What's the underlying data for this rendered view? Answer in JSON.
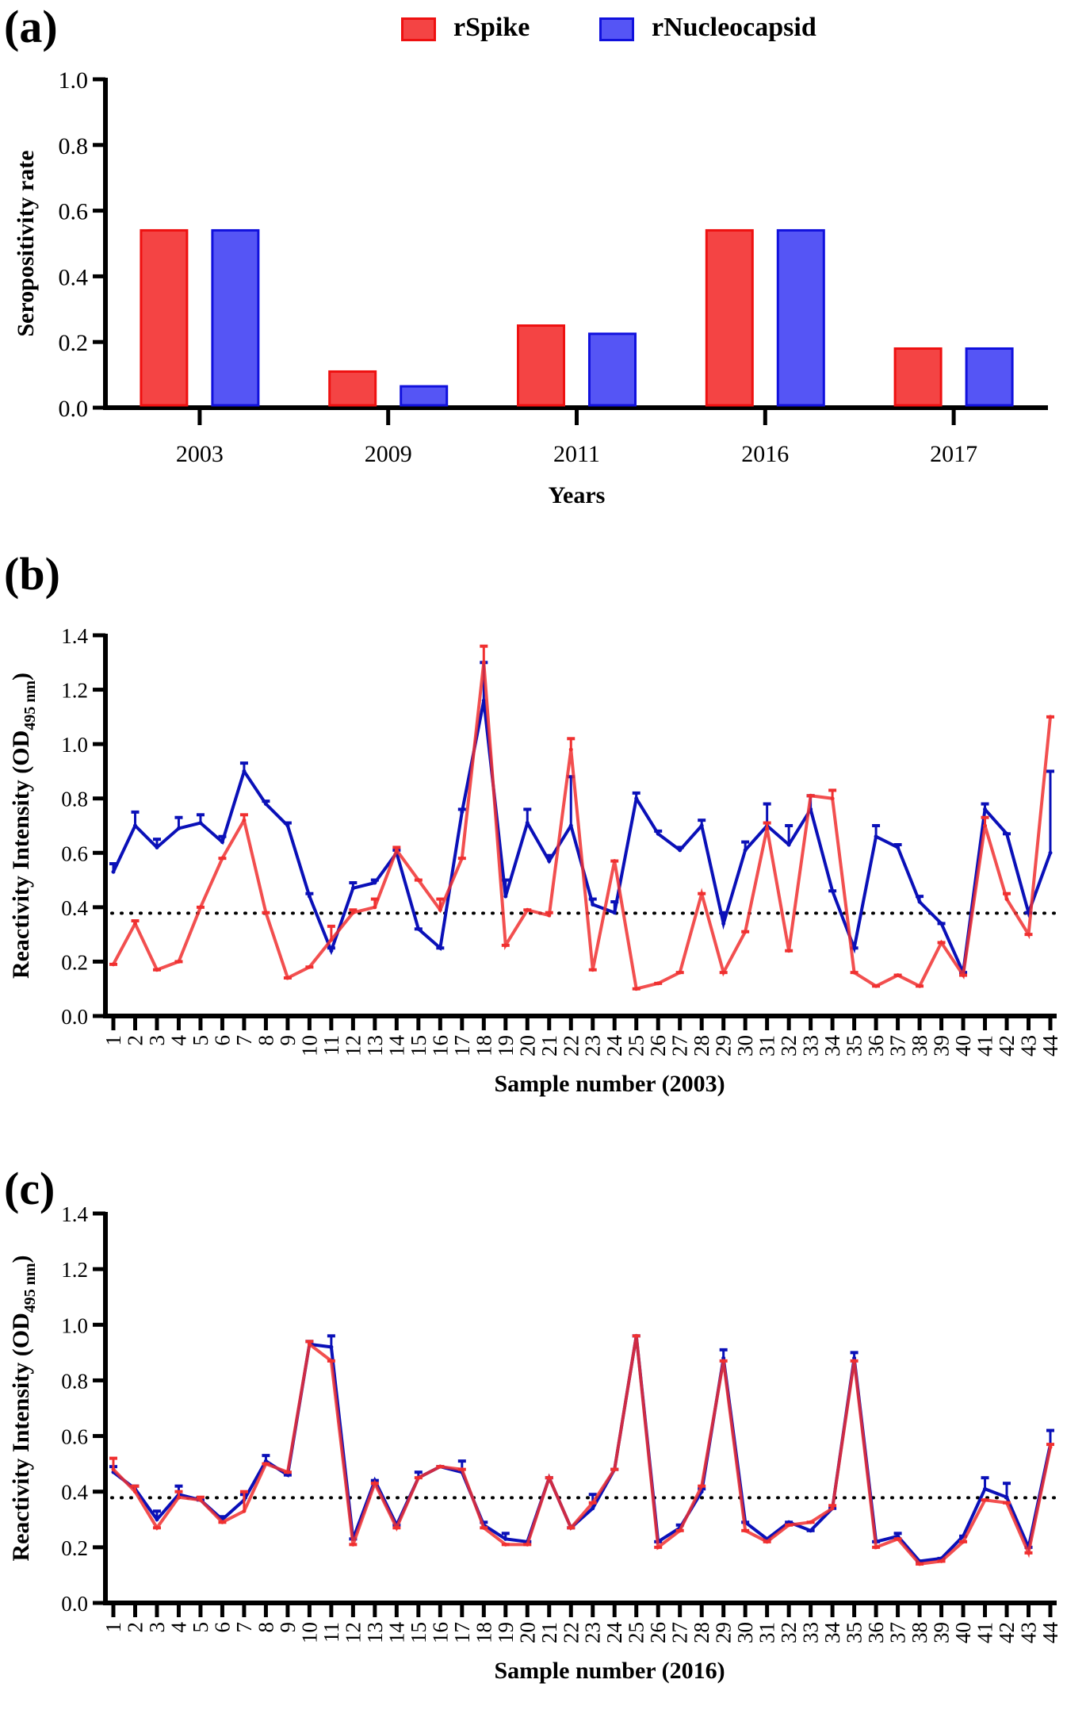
{
  "figure": {
    "panel_labels": [
      "(a)",
      "(b)",
      "(c)"
    ],
    "legend": [
      {
        "name": "rSpike",
        "color": "#f44444",
        "stroke": "#ee1111"
      },
      {
        "name": "rNucleocapsid",
        "color": "#5555f5",
        "stroke": "#1111dd"
      }
    ],
    "line_colors": {
      "rSpike": "#f03030",
      "rNucleocapsid": "#0a10b8"
    }
  },
  "chart_data": [
    {
      "id": "a",
      "type": "bar",
      "title": "",
      "xlabel": "Years",
      "ylabel": "Seropositivity rate",
      "categories": [
        "2003",
        "2009",
        "2011",
        "2016",
        "2017"
      ],
      "series": [
        {
          "name": "rSpike",
          "values": [
            0.54,
            0.11,
            0.25,
            0.54,
            0.18
          ]
        },
        {
          "name": "rNucleocapsid",
          "values": [
            0.54,
            0.065,
            0.225,
            0.54,
            0.18
          ]
        }
      ],
      "ylim": [
        0,
        1.0
      ],
      "yticks": [
        "0.0",
        "0.2",
        "0.4",
        "0.6",
        "0.8",
        "1.0"
      ],
      "legend_position": "top"
    },
    {
      "id": "b",
      "type": "line",
      "xlabel": "Sample number (2003)",
      "ylabel": "Reactivity Intensity (OD",
      "ylabel_sub": "495 nm",
      "ylabel_end": ")",
      "x": [
        1,
        2,
        3,
        4,
        5,
        6,
        7,
        8,
        9,
        10,
        11,
        12,
        13,
        14,
        15,
        16,
        17,
        18,
        19,
        20,
        21,
        22,
        23,
        24,
        25,
        26,
        27,
        28,
        29,
        30,
        31,
        32,
        33,
        34,
        35,
        36,
        37,
        38,
        39,
        40,
        41,
        42,
        43,
        44
      ],
      "cutoff": 0.378,
      "ylim": [
        0,
        1.4
      ],
      "yticks": [
        "0.0",
        "0.2",
        "0.4",
        "0.6",
        "0.8",
        "1.0",
        "1.2",
        "1.4"
      ],
      "series": [
        {
          "name": "rNucleocapsid",
          "values": [
            0.53,
            0.7,
            0.62,
            0.69,
            0.71,
            0.64,
            0.9,
            0.78,
            0.7,
            0.44,
            0.24,
            0.47,
            0.49,
            0.6,
            0.32,
            0.25,
            0.75,
            1.16,
            0.44,
            0.71,
            0.57,
            0.7,
            0.41,
            0.38,
            0.8,
            0.67,
            0.61,
            0.7,
            0.34,
            0.61,
            0.7,
            0.63,
            0.76,
            0.46,
            0.25,
            0.66,
            0.62,
            0.42,
            0.34,
            0.16,
            0.76,
            0.67,
            0.38,
            0.6
          ],
          "error": [
            0.03,
            0.05,
            0.03,
            0.04,
            0.03,
            0.02,
            0.03,
            0.01,
            0.01,
            0.01,
            0.01,
            0.02,
            0.01,
            0.01,
            0.0,
            0.0,
            0.01,
            0.14,
            0.06,
            0.05,
            0.02,
            0.18,
            0.02,
            0.04,
            0.02,
            0.01,
            0.01,
            0.02,
            0.04,
            0.03,
            0.08,
            0.07,
            0.05,
            0.0,
            0.0,
            0.04,
            0.01,
            0.02,
            0.0,
            0.0,
            0.02,
            0.0,
            0.0,
            0.3
          ]
        },
        {
          "name": "rSpike",
          "values": [
            0.19,
            0.34,
            0.17,
            0.2,
            0.4,
            0.58,
            0.72,
            0.38,
            0.14,
            0.18,
            0.28,
            0.38,
            0.4,
            0.61,
            0.5,
            0.39,
            0.58,
            1.3,
            0.26,
            0.39,
            0.37,
            0.98,
            0.17,
            0.57,
            0.1,
            0.12,
            0.16,
            0.45,
            0.16,
            0.31,
            0.69,
            0.24,
            0.81,
            0.8,
            0.16,
            0.11,
            0.15,
            0.11,
            0.27,
            0.15,
            0.7,
            0.43,
            0.3,
            1.1
          ],
          "error": [
            0.0,
            0.01,
            0.0,
            0.0,
            0.0,
            0.0,
            0.02,
            0.0,
            0.0,
            0.0,
            0.05,
            0.01,
            0.03,
            0.01,
            0.0,
            0.04,
            0.0,
            0.06,
            0.0,
            0.0,
            0.01,
            0.04,
            0.0,
            0.0,
            0.0,
            0.0,
            0.0,
            0.0,
            0.0,
            0.0,
            0.02,
            0.0,
            0.0,
            0.03,
            0.0,
            0.0,
            0.0,
            0.0,
            0.0,
            0.0,
            0.03,
            0.02,
            0.0,
            0.0
          ]
        }
      ]
    },
    {
      "id": "c",
      "type": "line",
      "xlabel": "Sample number (2016)",
      "ylabel": "Reactivity Intensity (OD",
      "ylabel_sub": "495 nm",
      "ylabel_end": ")",
      "x": [
        1,
        2,
        3,
        4,
        5,
        6,
        7,
        8,
        9,
        10,
        11,
        12,
        13,
        14,
        15,
        16,
        17,
        18,
        19,
        20,
        21,
        22,
        23,
        24,
        25,
        26,
        27,
        28,
        29,
        30,
        31,
        32,
        33,
        34,
        35,
        36,
        37,
        38,
        39,
        40,
        41,
        42,
        43,
        44
      ],
      "cutoff": 0.378,
      "ylim": [
        0,
        1.4
      ],
      "yticks": [
        "0.0",
        "0.2",
        "0.4",
        "0.6",
        "0.8",
        "1.0",
        "1.2",
        "1.4"
      ],
      "series": [
        {
          "name": "rNucleocapsid",
          "values": [
            0.47,
            0.41,
            0.3,
            0.39,
            0.37,
            0.3,
            0.37,
            0.51,
            0.46,
            0.93,
            0.92,
            0.23,
            0.44,
            0.28,
            0.45,
            0.49,
            0.47,
            0.28,
            0.23,
            0.22,
            0.45,
            0.27,
            0.34,
            0.48,
            0.96,
            0.22,
            0.27,
            0.4,
            0.88,
            0.29,
            0.23,
            0.29,
            0.26,
            0.34,
            0.88,
            0.22,
            0.24,
            0.15,
            0.16,
            0.24,
            0.41,
            0.38,
            0.2,
            0.57
          ],
          "error": [
            0.02,
            0.01,
            0.03,
            0.03,
            0.0,
            0.01,
            0.02,
            0.02,
            0.0,
            0.01,
            0.04,
            0.0,
            0.0,
            0.0,
            0.02,
            0.0,
            0.04,
            0.01,
            0.02,
            0.0,
            0.0,
            0.0,
            0.05,
            0.0,
            0.0,
            0.0,
            0.01,
            0.01,
            0.03,
            0.0,
            0.0,
            0.0,
            0.0,
            0.0,
            0.02,
            0.0,
            0.01,
            0.0,
            0.0,
            0.0,
            0.04,
            0.05,
            0.0,
            0.05
          ]
        },
        {
          "name": "rSpike",
          "values": [
            0.48,
            0.4,
            0.27,
            0.38,
            0.37,
            0.29,
            0.33,
            0.5,
            0.47,
            0.93,
            0.87,
            0.21,
            0.43,
            0.27,
            0.45,
            0.49,
            0.48,
            0.27,
            0.21,
            0.21,
            0.45,
            0.27,
            0.36,
            0.48,
            0.96,
            0.2,
            0.26,
            0.42,
            0.87,
            0.26,
            0.22,
            0.28,
            0.29,
            0.34,
            0.87,
            0.2,
            0.23,
            0.14,
            0.15,
            0.22,
            0.37,
            0.36,
            0.18,
            0.56
          ],
          "error": [
            0.04,
            0.02,
            0.0,
            0.02,
            0.01,
            0.0,
            0.07,
            0.0,
            0.0,
            0.01,
            0.0,
            0.0,
            0.0,
            0.0,
            0.0,
            0.0,
            0.0,
            0.0,
            0.0,
            0.0,
            0.0,
            0.0,
            0.0,
            0.0,
            0.0,
            0.0,
            0.0,
            0.0,
            0.0,
            0.0,
            0.0,
            0.0,
            0.0,
            0.01,
            0.0,
            0.0,
            0.0,
            0.0,
            0.0,
            0.0,
            0.0,
            0.0,
            0.0,
            0.01
          ]
        }
      ]
    }
  ]
}
